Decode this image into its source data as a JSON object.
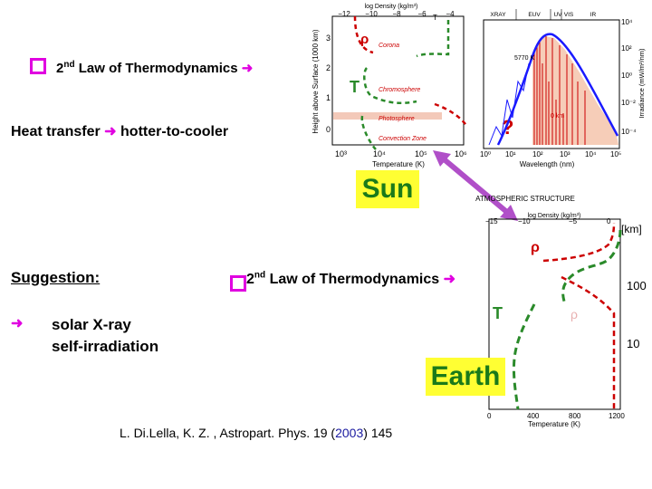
{
  "law": {
    "text": "2nd Law of Thermodynamics",
    "sup": "nd",
    "num": "2",
    "rest": " Law of Thermodynamics"
  },
  "heat_transfer": {
    "left": "Heat transfer",
    "right": "hotter-to-cooler"
  },
  "suggestion": {
    "title": "Suggestion:",
    "line1": "solar X-ray",
    "line2": "self-irradiation"
  },
  "sun_label": "Sun",
  "earth_label": "Earth",
  "citation": {
    "authors": "L. Di.Lella, K. Z. , Astropart. Phys. 19 (",
    "year": "2003",
    "pages": ") 145"
  },
  "sun_panel": {
    "top_axis_label": "log Density (kg/m³)",
    "top_ticks": [
      "−12",
      "−10",
      "−8",
      "−6",
      "−4"
    ],
    "y_axis_label": "Height above Surface (1000 km)",
    "y_ticks": [
      "3",
      "2",
      "1",
      "0"
    ],
    "x_axis_label": "Temperature (K)",
    "x_ticks": [
      "10³",
      "10⁴",
      "10⁵",
      "10⁶"
    ],
    "rho": "ρ",
    "T": "T",
    "layers": [
      "Corona",
      "Chromosphere",
      "Photosphere",
      "Convection Zone"
    ],
    "question": "?"
  },
  "spectrum_panel": {
    "bands": [
      "XRAY",
      "EUV",
      "UV",
      "VIS",
      "IR"
    ],
    "x_axis_label": "Wavelength (nm)",
    "x_ticks": [
      "10⁰",
      "10¹",
      "10²",
      "10³",
      "10⁴",
      "10⁵"
    ],
    "y_axis_label": "Irradiance (mW/m²/nm)",
    "y_ticks": [
      "10⁴",
      "10²",
      "10⁰",
      "10⁻²",
      "10⁻⁴"
    ],
    "blackbody_label": "5770 K",
    "height_label": "0 km"
  },
  "earth_panel": {
    "title": "ATMOSPHERIC STRUCTURE",
    "top_axis_label": "log Density (kg/m³)",
    "top_ticks": [
      "−15",
      "−10",
      "−5",
      "0"
    ],
    "km_unit": "[km]",
    "km_ticks": [
      "100",
      "10"
    ],
    "rho": "ρ",
    "T": "T",
    "faint_rho": "ρ",
    "x_axis_label": "Temperature (K)",
    "x_ticks": [
      "0",
      "400",
      "800",
      "1200"
    ]
  },
  "colors": {
    "accent": "#e000e0",
    "dashed_curve": "#2a8a2a",
    "label_bg": "#ffff33",
    "label_fg": "#1a7a1a",
    "red": "#cc0000",
    "blue": "#1a1aff"
  }
}
